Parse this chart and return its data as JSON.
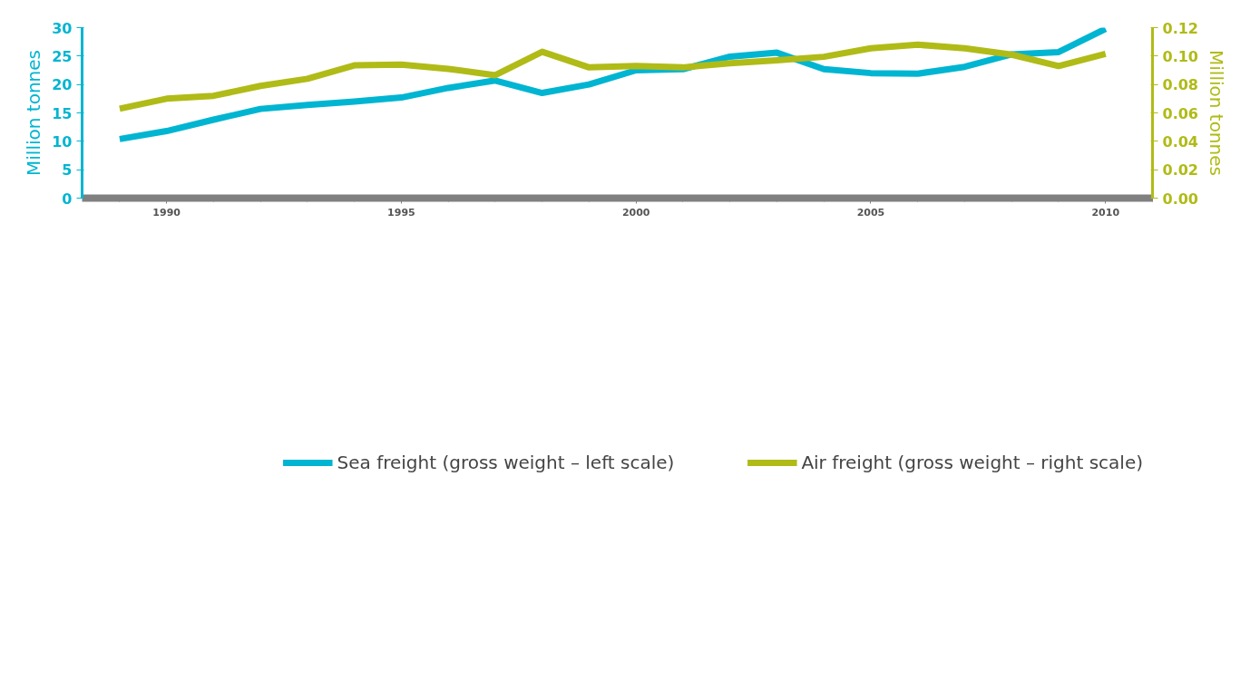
{
  "chart_data": {
    "type": "line",
    "ylabel": "Million tonnes",
    "y2label": "Million tonnes",
    "x": [
      1989,
      1990,
      1991,
      1992,
      1993,
      1994,
      1995,
      1996,
      1997,
      1998,
      1999,
      2000,
      2001,
      2002,
      2003,
      2004,
      2005,
      2006,
      2007,
      2008,
      2009,
      2010
    ],
    "series": [
      {
        "name": "Sea freight (gross weight – left scale)",
        "color": "#00b5d1",
        "values": [
          10.4,
          11.8,
          13.8,
          15.7,
          16.4,
          17.0,
          17.7,
          19.4,
          20.7,
          18.5,
          20.0,
          22.5,
          22.7,
          24.9,
          25.6,
          22.7,
          22.0,
          21.9,
          23.1,
          25.3,
          25.7,
          29.8
        ]
      },
      {
        "name": "Air freight (gross weight – right scale)",
        "color": "#b0bb17",
        "axis": "y2",
        "values": [
          0.063,
          0.07,
          0.072,
          0.079,
          0.084,
          0.0935,
          0.094,
          0.091,
          0.0865,
          0.103,
          0.092,
          0.093,
          0.092,
          0.095,
          0.097,
          0.0995,
          0.1055,
          0.108,
          0.1055,
          0.101,
          0.093,
          0.1015
        ]
      }
    ],
    "xlim": [
      1988.2,
      2011
    ],
    "xticks": [
      1990,
      1995,
      2000,
      2005,
      2010
    ],
    "ylim": [
      0,
      30
    ],
    "yticks": [
      0,
      5,
      10,
      15,
      20,
      25,
      30
    ],
    "y2lim": [
      0,
      0.12
    ],
    "y2ticks": [
      {
        "value": 0,
        "label": "0.00"
      },
      {
        "value": 0.02,
        "label": "0.02"
      },
      {
        "value": 0.04,
        "label": "0.04"
      },
      {
        "value": 0.06,
        "label": "0.06"
      },
      {
        "value": 0.08,
        "label": "0.08"
      },
      {
        "value": 0.1,
        "label": "0.10"
      },
      {
        "value": 0.12,
        "label": "0.12"
      }
    ],
    "grid": false,
    "legend": "bottom",
    "line_style": "solid",
    "marker": "none"
  }
}
